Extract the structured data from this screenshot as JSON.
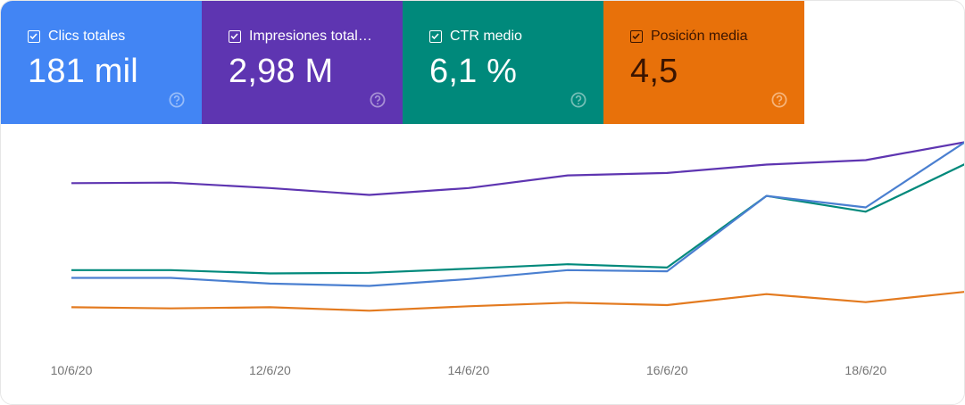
{
  "cards": [
    {
      "label": "Clics totales",
      "value": "181 mil",
      "checked": true,
      "color": "#4285f4",
      "icon": "checkbox-checked-icon",
      "help_icon": "help-circle-icon"
    },
    {
      "label": "Impresiones total…",
      "value": "2,98 M",
      "checked": true,
      "color": "#5e35b1",
      "icon": "checkbox-checked-icon",
      "help_icon": "help-circle-icon"
    },
    {
      "label": "CTR medio",
      "value": "6,1 %",
      "checked": true,
      "color": "#00897b",
      "icon": "checkbox-checked-icon",
      "help_icon": "help-circle-icon"
    },
    {
      "label": "Posición media",
      "value": "4,5",
      "checked": true,
      "color": "#e8710a",
      "icon": "checkbox-checked-icon",
      "help_icon": "help-circle-icon"
    }
  ],
  "chart_data": {
    "type": "line",
    "title": "",
    "xlabel": "",
    "ylabel": "",
    "x": [
      "10/6/20",
      "11/6/20",
      "12/6/20",
      "13/6/20",
      "14/6/20",
      "15/6/20",
      "16/6/20",
      "17/6/20",
      "18/6/20",
      "19/6/20"
    ],
    "x_tick_labels": [
      "10/6/20",
      "12/6/20",
      "14/6/20",
      "16/6/20",
      "18/6/20"
    ],
    "grid": false,
    "legend": "none",
    "ylim": [
      0,
      100
    ],
    "series": [
      {
        "name": "Impresiones totales",
        "color": "#5e35b1",
        "values": [
          72,
          72.3,
          69.5,
          66,
          69.5,
          76,
          77.2,
          81.5,
          83.8,
          93
        ]
      },
      {
        "name": "CTR medio",
        "color": "#00897b",
        "values": [
          27.5,
          27.5,
          25.8,
          26.1,
          28.2,
          30.5,
          28.8,
          65.5,
          57.4,
          81.8
        ]
      },
      {
        "name": "Clics totales",
        "color": "#4a7fd0",
        "values": [
          23.5,
          23.5,
          20.6,
          19.4,
          22.9,
          27.5,
          26.9,
          65.5,
          59.6,
          93
        ]
      },
      {
        "name": "Posición media",
        "color": "#e37a1f",
        "values": [
          8.5,
          7.9,
          8.5,
          6.7,
          9.0,
          10.8,
          9.6,
          15.2,
          11.1,
          16.4
        ]
      }
    ]
  }
}
